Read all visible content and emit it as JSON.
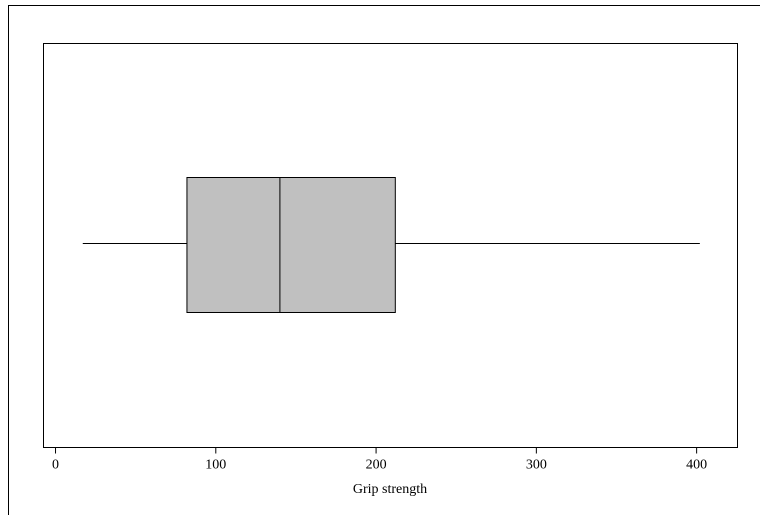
{
  "chart_data": {
    "type": "box",
    "x_label": "Grip strength",
    "min": 17,
    "q1": 82,
    "median": 140,
    "q3": 212,
    "max": 402,
    "color": "#c0c0c0",
    "xlim": [
      -7.5,
      425.5
    ],
    "xticks": [
      0,
      100,
      200,
      300,
      400
    ]
  }
}
